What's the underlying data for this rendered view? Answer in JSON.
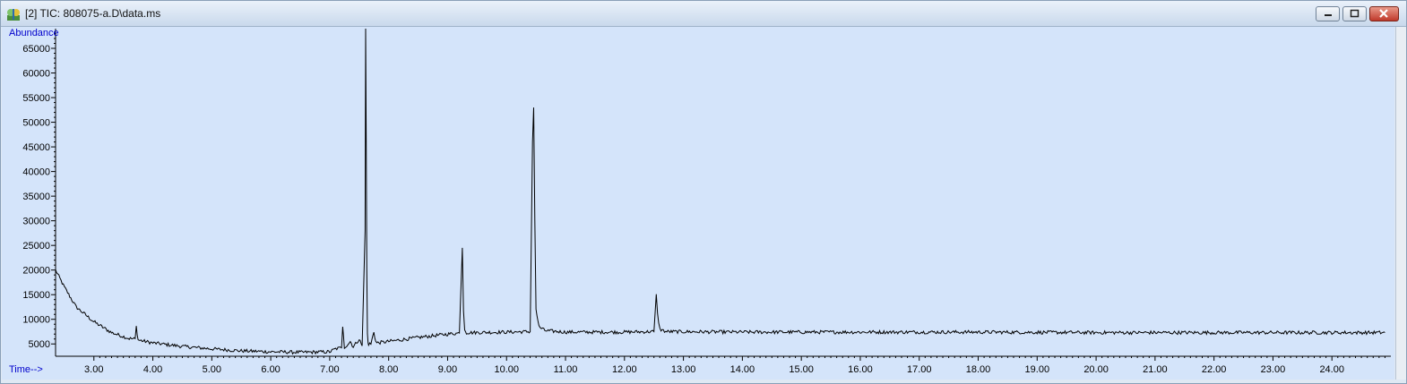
{
  "window": {
    "title": "[2] TIC: 808075-a.D\\data.ms",
    "icon": "chromatogram-app-icon",
    "controls": [
      "minimize-icon",
      "maximize-icon",
      "close-icon"
    ]
  },
  "chart_data": {
    "type": "line",
    "title": "",
    "ylabel": "Abundance",
    "xlabel": "Time-->",
    "xlim": [
      2.35,
      25.0
    ],
    "ylim": [
      2500,
      69000
    ],
    "x_ticks": [
      "3.00",
      "4.00",
      "5.00",
      "6.00",
      "7.00",
      "8.00",
      "9.00",
      "10.00",
      "11.00",
      "12.00",
      "13.00",
      "14.00",
      "15.00",
      "16.00",
      "17.00",
      "18.00",
      "19.00",
      "20.00",
      "21.00",
      "22.00",
      "23.00",
      "24.00"
    ],
    "y_ticks": [
      "5000",
      "10000",
      "15000",
      "20000",
      "25000",
      "30000",
      "35000",
      "40000",
      "45000",
      "50000",
      "55000",
      "60000",
      "65000"
    ],
    "grid": false,
    "line_color": "#000000",
    "background": "#d4e4fa",
    "series": [
      {
        "x": [
          2.35,
          2.5,
          2.7,
          3.0,
          3.3,
          3.6,
          3.7,
          3.72,
          3.75,
          4.0,
          4.5,
          5.0,
          5.5,
          6.0,
          6.5,
          7.0,
          7.1,
          7.2,
          7.22,
          7.25,
          7.35,
          7.4,
          7.5,
          7.55,
          7.6,
          7.61,
          7.62,
          7.63,
          7.64,
          7.65,
          7.66,
          7.7,
          7.75,
          7.78,
          7.8,
          8.0,
          8.5,
          9.0,
          9.2,
          9.25,
          9.27,
          9.29,
          9.32,
          9.4,
          10.0,
          10.4,
          10.44,
          10.46,
          10.48,
          10.5,
          10.55,
          10.65,
          11.0,
          12.0,
          12.5,
          12.54,
          12.56,
          12.6,
          12.7,
          14.0,
          16.0,
          18.0,
          20.0,
          22.0,
          24.0,
          24.9
        ],
        "y": [
          20000,
          16500,
          12500,
          9500,
          7300,
          6100,
          6000,
          8500,
          5800,
          5200,
          4500,
          4000,
          3600,
          3400,
          3300,
          3400,
          4000,
          4200,
          8500,
          4300,
          5500,
          4400,
          6000,
          4600,
          28000,
          69000,
          45000,
          20000,
          7000,
          5200,
          5000,
          5000,
          7500,
          5500,
          5200,
          5500,
          6300,
          7000,
          7200,
          24500,
          12000,
          8000,
          7300,
          7300,
          7400,
          7500,
          46000,
          53000,
          30000,
          12000,
          8500,
          7700,
          7400,
          7400,
          7500,
          15000,
          11000,
          8000,
          7500,
          7400,
          7400,
          7400,
          7300,
          7300,
          7300,
          7300
        ]
      }
    ]
  }
}
